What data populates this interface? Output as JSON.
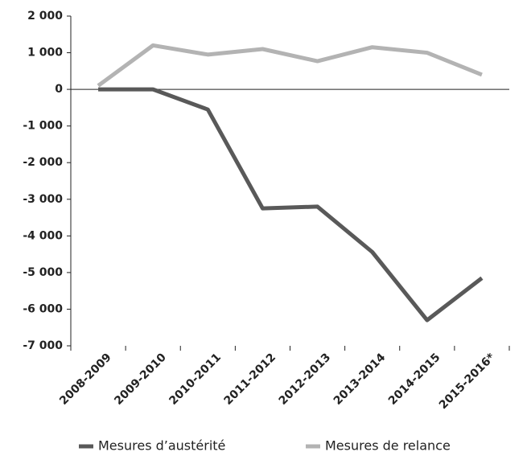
{
  "chart_data": {
    "type": "line",
    "categories": [
      "2008-2009",
      "2009-2010",
      "2010-2011",
      "2011-2012",
      "2012-2013",
      "2013-2014",
      "2014-2015",
      "2015-2016*"
    ],
    "series": [
      {
        "name": "Mesures d’austérité",
        "color": "#595959",
        "values": [
          0,
          0,
          -550,
          -3250,
          -3200,
          -4440,
          -6300,
          -5150
        ]
      },
      {
        "name": "Mesures de relance",
        "color": "#b3b3b3",
        "values": [
          100,
          1200,
          950,
          1100,
          770,
          1150,
          1000,
          400
        ]
      }
    ],
    "ylim": [
      -7000,
      2000
    ],
    "yticks": [
      {
        "value": -7000,
        "label": "-7 000"
      },
      {
        "value": -6000,
        "label": "-6 000"
      },
      {
        "value": -5000,
        "label": "-5 000"
      },
      {
        "value": -4000,
        "label": "-4 000"
      },
      {
        "value": -3000,
        "label": "-3 000"
      },
      {
        "value": -2000,
        "label": "-2 000"
      },
      {
        "value": -1000,
        "label": "-1 000"
      },
      0,
      {
        "value": 1000,
        "label": "1 000"
      },
      {
        "value": 2000,
        "label": "2 000"
      }
    ],
    "legend": "bottom"
  }
}
